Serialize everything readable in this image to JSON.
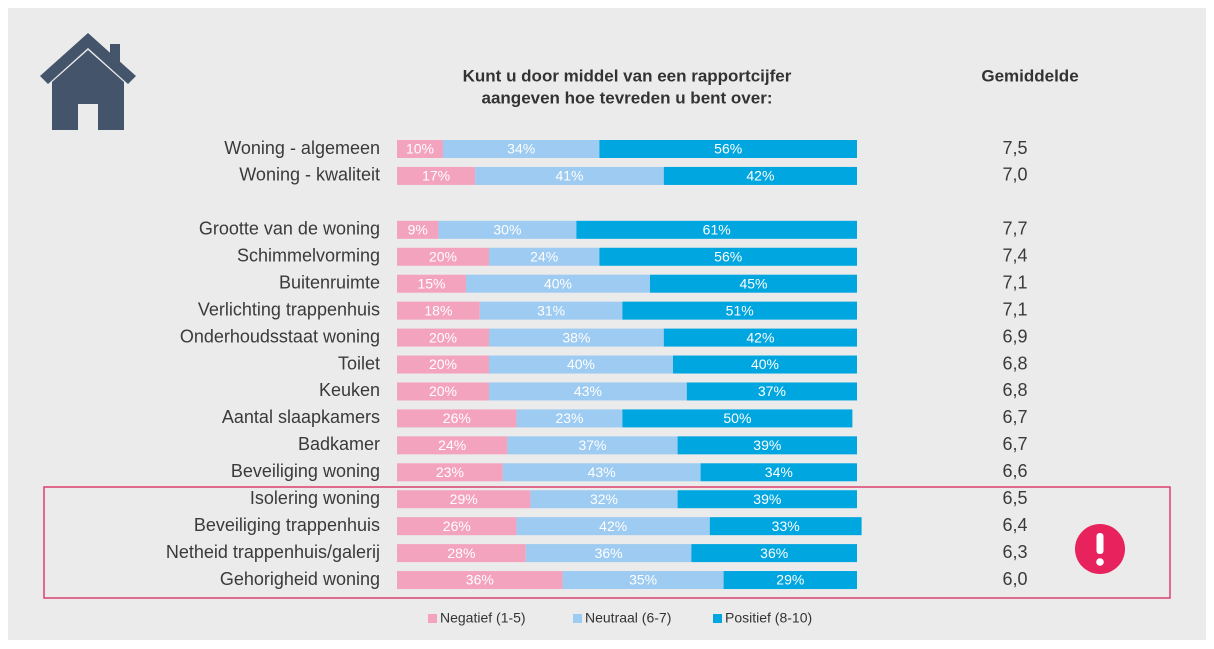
{
  "chart_data": {
    "type": "stacked-bar-horizontal",
    "title": [
      "Kunt u door middel van een rapportcijfer",
      "aangeven hoe tevreden u bent over:"
    ],
    "average_header": "Gemiddelde",
    "categories": [
      "Woning - algemeen",
      "Woning - kwaliteit",
      null,
      "Grootte van de woning",
      "Schimmelvorming",
      "Buitenruimte",
      "Verlichting trappenhuis",
      "Onderhoudsstaat woning",
      "Toilet",
      "Keuken",
      "Aantal slaapkamers",
      "Badkamer",
      "Beveiliging woning",
      "Isolering woning",
      "Beveiliging trappenhuis",
      "Netheid trappenhuis/galerij",
      "Gehorigheid woning"
    ],
    "xlim": [
      0,
      100
    ],
    "series": [
      {
        "name": "Negatief (1-5)",
        "color": "#f4a3bf",
        "values": [
          10,
          17,
          null,
          9,
          20,
          15,
          18,
          20,
          20,
          20,
          26,
          24,
          23,
          29,
          26,
          28,
          36
        ],
        "value_labels": [
          "10%",
          "17%",
          null,
          "9%",
          "20%",
          "15%",
          "18%",
          "20%",
          "20%",
          "20%",
          "26%",
          "24%",
          "23%",
          "29%",
          "26%",
          "28%",
          "36%"
        ]
      },
      {
        "name": "Neutraal (6-7)",
        "color": "#9dcbf1",
        "values": [
          34,
          41,
          null,
          30,
          24,
          40,
          31,
          38,
          40,
          43,
          23,
          37,
          43,
          32,
          42,
          36,
          35
        ],
        "value_labels": [
          "34%",
          "41%",
          null,
          "30%",
          "24%",
          "40%",
          "31%",
          "38%",
          "40%",
          "43%",
          "23%",
          "37%",
          "43%",
          "32%",
          "42%",
          "36%",
          "35%"
        ]
      },
      {
        "name": "Positief (8-10)",
        "color": "#00a6df",
        "values": [
          56,
          42,
          null,
          61,
          56,
          45,
          51,
          42,
          40,
          37,
          50,
          39,
          34,
          39,
          33,
          36,
          29
        ],
        "value_labels": [
          "56%",
          "42%",
          null,
          "61%",
          "56%",
          "45%",
          "51%",
          "42%",
          "40%",
          "37%",
          "50%",
          "39%",
          "34%",
          "39%",
          "33%",
          "36%",
          "29%"
        ]
      }
    ],
    "averages": [
      7.5,
      7.0,
      null,
      7.7,
      7.4,
      7.1,
      7.1,
      6.9,
      6.8,
      6.8,
      6.7,
      6.7,
      6.6,
      6.5,
      6.4,
      6.3,
      6.0
    ],
    "average_labels": [
      "7,5",
      "7,0",
      null,
      "7,7",
      "7,4",
      "7,1",
      "7,1",
      "6,9",
      "6,8",
      "6,8",
      "6,7",
      "6,7",
      "6,6",
      "6,5",
      "6,4",
      "6,3",
      "6,0"
    ]
  }
}
